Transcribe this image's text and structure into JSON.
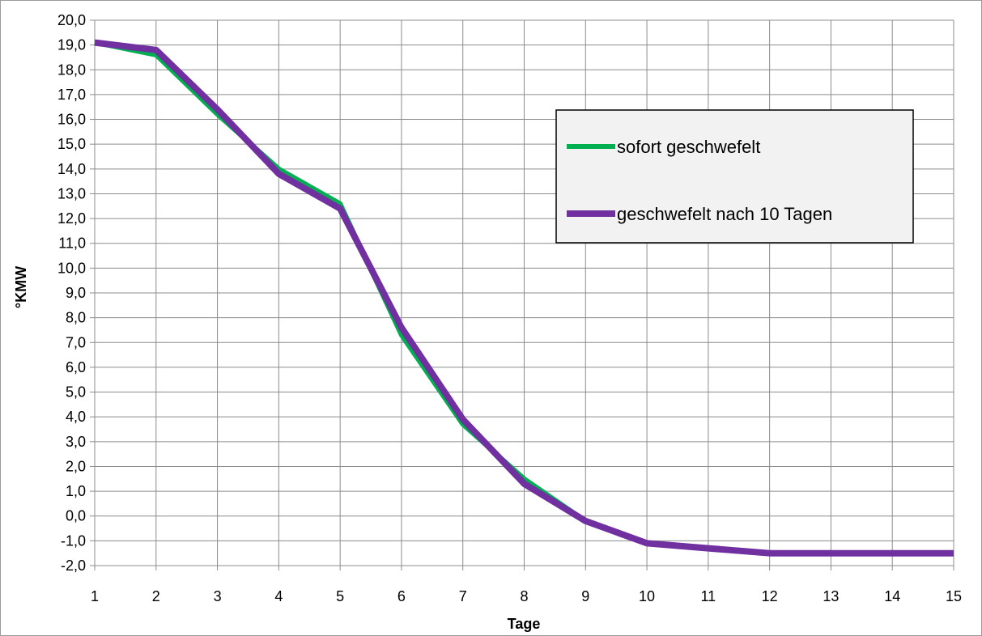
{
  "chart_data": {
    "type": "line",
    "title": "",
    "xlabel": "Tage",
    "ylabel": "°KMW",
    "x": [
      1,
      2,
      3,
      4,
      5,
      6,
      7,
      8,
      9,
      10,
      11,
      12,
      13,
      14,
      15
    ],
    "x_tick_labels": [
      "1",
      "2",
      "3",
      "4",
      "5",
      "6",
      "7",
      "8",
      "9",
      "10",
      "11",
      "12",
      "13",
      "14",
      "15"
    ],
    "ylim": [
      -2,
      20
    ],
    "y_tick_labels": [
      "-2,0",
      "-1,0",
      "0,0",
      "1,0",
      "2,0",
      "3,0",
      "4,0",
      "5,0",
      "6,0",
      "7,0",
      "8,0",
      "9,0",
      "10,0",
      "11,0",
      "12,0",
      "13,0",
      "14,0",
      "15,0",
      "16,0",
      "17,0",
      "18,0",
      "19,0",
      "20,0"
    ],
    "grid": true,
    "legend_position": "top-right",
    "series": [
      {
        "name": "sofort geschwefelt",
        "color": "#00b050",
        "values": [
          19.1,
          18.6,
          16.2,
          14.0,
          12.6,
          7.3,
          3.7,
          1.5,
          -0.2,
          -1.1,
          -1.3,
          -1.5,
          -1.5,
          -1.5,
          -1.5
        ]
      },
      {
        "name": "geschwefelt nach 10 Tagen",
        "color": "#7030a0",
        "values": [
          19.1,
          18.8,
          16.4,
          13.8,
          12.4,
          7.6,
          3.9,
          1.3,
          -0.2,
          -1.1,
          -1.3,
          -1.5,
          -1.5,
          -1.5,
          -1.5
        ]
      }
    ]
  }
}
